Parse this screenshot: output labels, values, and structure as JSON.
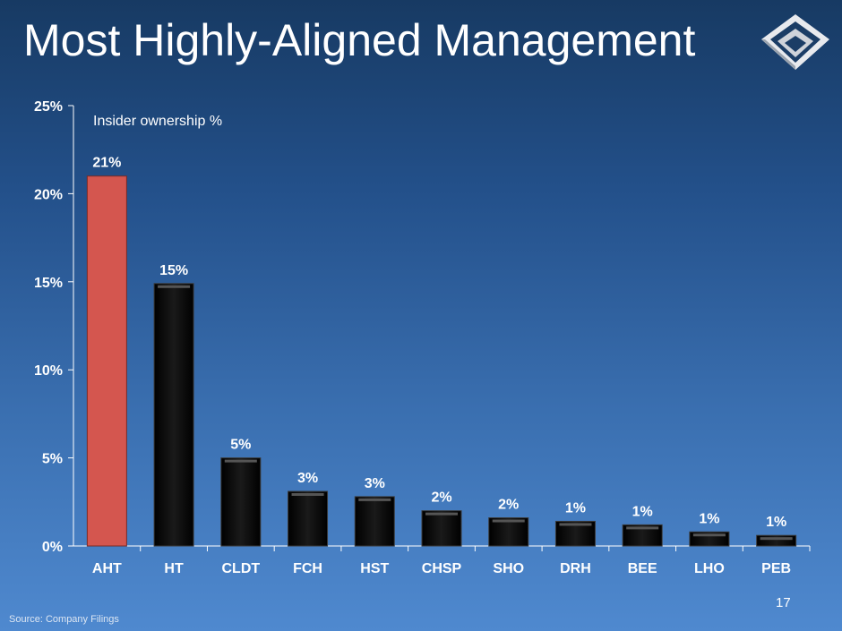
{
  "slide": {
    "title": "Most Highly-Aligned Management",
    "page_number": "17",
    "source": "Source:  Company Filings"
  },
  "colors": {
    "highlight_bar": "#d4564f",
    "bar": "#0d0d0d",
    "axis": "#ffffff"
  },
  "chart_data": {
    "type": "bar",
    "title": "",
    "annotation": "Insider ownership %",
    "categories": [
      "AHT",
      "HT",
      "CLDT",
      "FCH",
      "HST",
      "CHSP",
      "SHO",
      "DRH",
      "BEE",
      "LHO",
      "PEB"
    ],
    "values": [
      21.0,
      14.9,
      5.0,
      3.1,
      2.8,
      2.0,
      1.6,
      1.4,
      1.2,
      0.8,
      0.6
    ],
    "data_labels": [
      "21%",
      "15%",
      "5%",
      "3%",
      "3%",
      "2%",
      "2%",
      "1%",
      "1%",
      "1%",
      "1%"
    ],
    "highlight_index": 0,
    "ylim": [
      0,
      25
    ],
    "yticks": [
      0,
      5,
      10,
      15,
      20,
      25
    ],
    "ytick_labels": [
      "0%",
      "5%",
      "10%",
      "15%",
      "20%",
      "25%"
    ],
    "xlabel": "",
    "ylabel": "",
    "grid": false,
    "legend": "none"
  }
}
